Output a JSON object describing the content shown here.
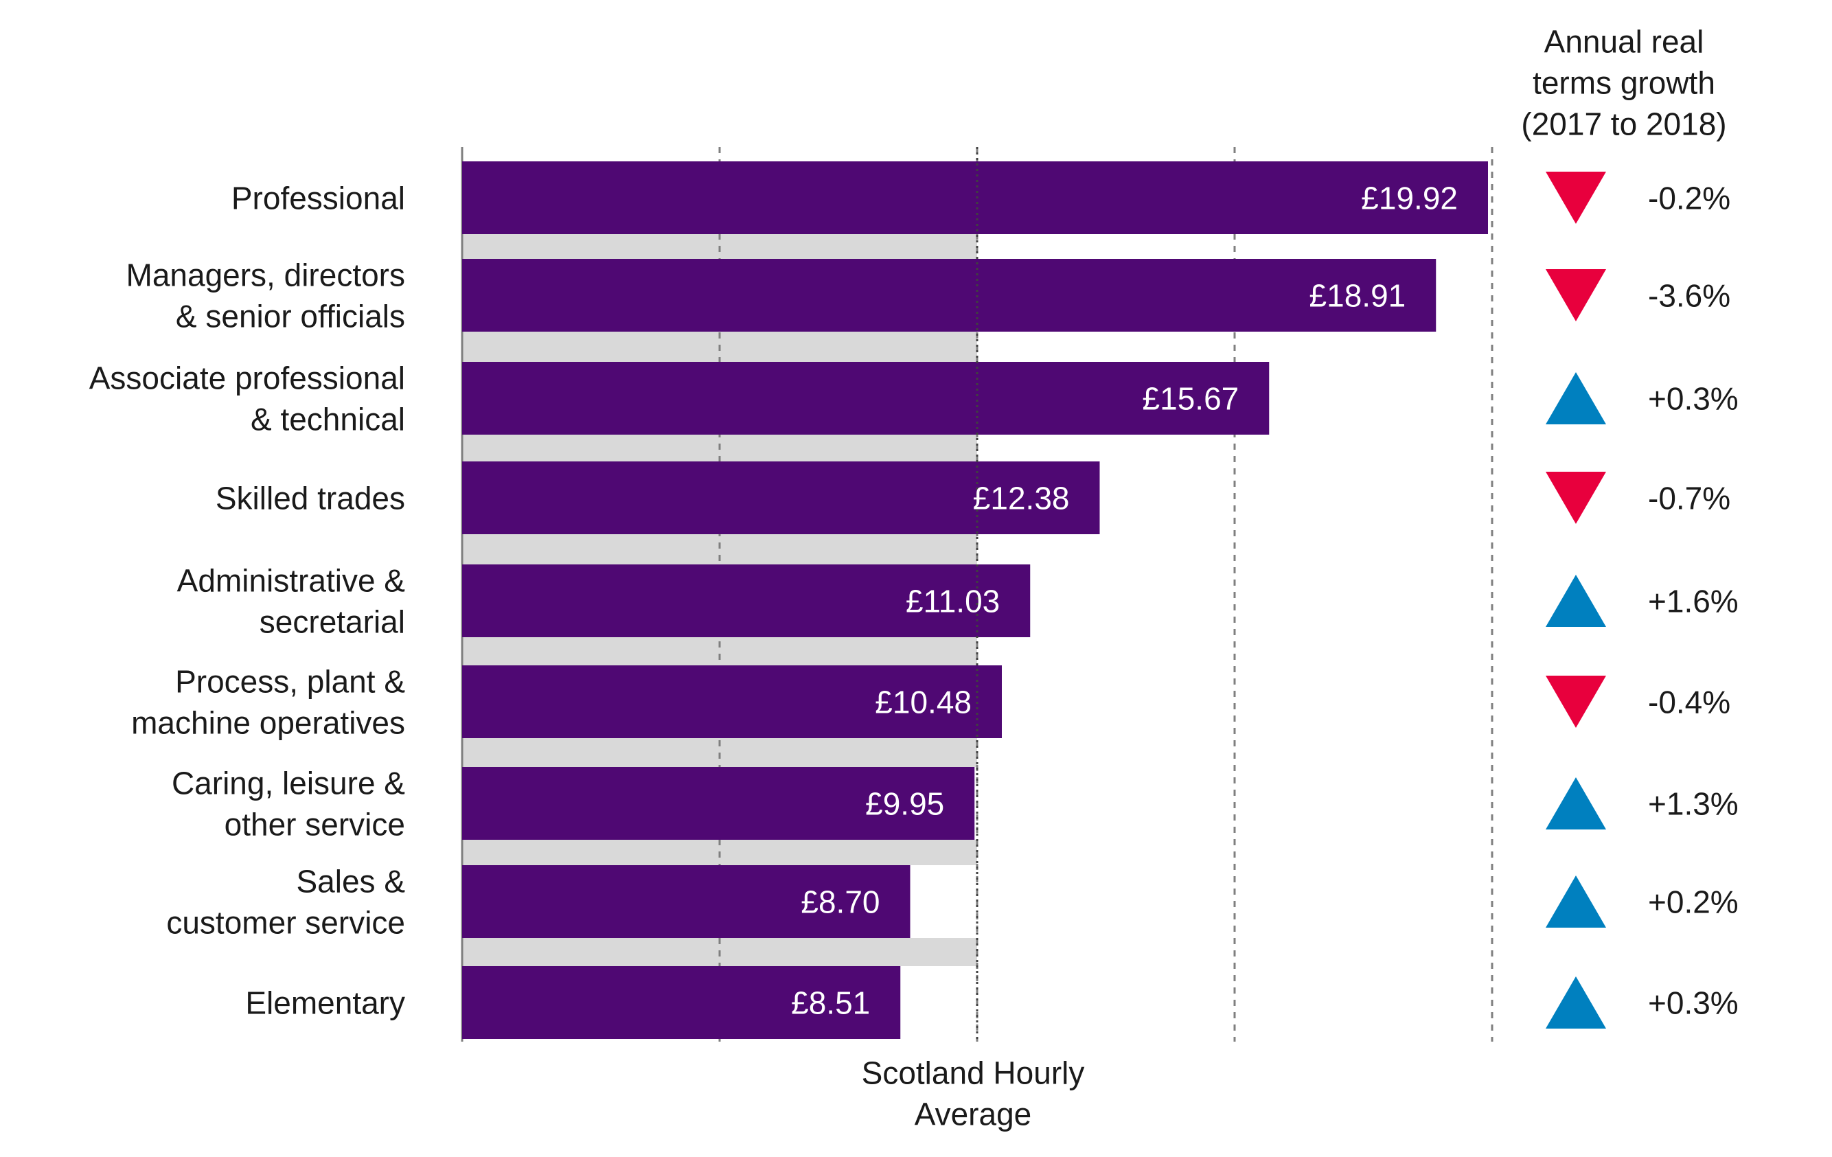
{
  "chart_data": {
    "type": "bar",
    "orientation": "horizontal",
    "categories": [
      "Professional",
      "Managers, directors\n& senior officials",
      "Associate professional\n& technical",
      "Skilled trades",
      "Administrative &\nsecretarial",
      "Process, plant &\nmachine operatives",
      "Caring, leisure &\nother service",
      "Sales &\ncustomer service",
      "Elementary"
    ],
    "values": [
      19.92,
      18.91,
      15.67,
      12.38,
      11.03,
      10.48,
      9.95,
      8.7,
      8.51
    ],
    "value_labels": [
      "£19.92",
      "£18.91",
      "£15.67",
      "£12.38",
      "£11.03",
      "£10.48",
      "£9.95",
      "£8.70",
      "£8.51"
    ],
    "xlim": [
      0,
      20
    ],
    "grid": "vertical-dashed",
    "gridlines_at": [
      0,
      5,
      10,
      15,
      20
    ],
    "average": {
      "value": 10.0,
      "label": "Scotland Hourly\nAverage"
    },
    "growth": {
      "title": "Annual real\nterms growth\n(2017 to 2018)",
      "values": [
        -0.2,
        -3.6,
        0.3,
        -0.7,
        1.6,
        -0.4,
        1.3,
        0.2,
        0.3
      ],
      "labels": [
        "-0.2%",
        "-3.6%",
        "+0.3%",
        "-0.7%",
        "+1.6%",
        "-0.4%",
        "+1.3%",
        "+0.2%",
        "+0.3%"
      ]
    },
    "colors": {
      "bar": "#4f0873",
      "average_band": "#d9d9d9",
      "up": "#0080bf",
      "down": "#e8003d",
      "grid": "#7f7f7f",
      "text": "#1a1a1a",
      "bar_label": "#ffffff"
    }
  }
}
